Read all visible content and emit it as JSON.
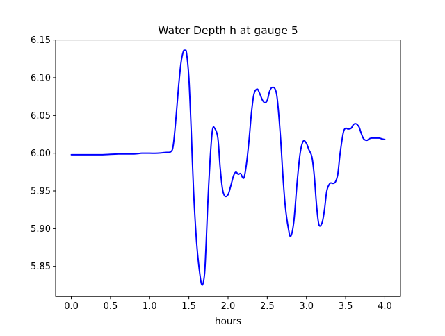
{
  "chart_data": {
    "type": "line",
    "title": "Water Depth h at gauge 5",
    "xlabel": "hours",
    "ylabel": "",
    "xlim": [
      -0.2,
      4.2
    ],
    "ylim": [
      5.81,
      6.15
    ],
    "xticks": [
      0.0,
      0.5,
      1.0,
      1.5,
      2.0,
      2.5,
      3.0,
      3.5,
      4.0
    ],
    "xtick_labels": [
      "0.0",
      "0.5",
      "1.0",
      "1.5",
      "2.0",
      "2.5",
      "3.0",
      "3.5",
      "4.0"
    ],
    "yticks": [
      5.85,
      5.9,
      5.95,
      6.0,
      6.05,
      6.1,
      6.15
    ],
    "ytick_labels": [
      "5.85",
      "5.90",
      "5.95",
      "6.00",
      "6.05",
      "6.10",
      "6.15"
    ],
    "grid": false,
    "legend": "none",
    "series": [
      {
        "color": "#0000ff",
        "x": [
          0.0,
          0.2,
          0.4,
          0.6,
          0.8,
          0.9,
          1.0,
          1.1,
          1.2,
          1.27,
          1.3,
          1.33,
          1.37,
          1.4,
          1.43,
          1.45,
          1.47,
          1.5,
          1.53,
          1.56,
          1.6,
          1.64,
          1.67,
          1.7,
          1.72,
          1.74,
          1.77,
          1.8,
          1.83,
          1.87,
          1.9,
          1.93,
          1.96,
          2.0,
          2.03,
          2.07,
          2.1,
          2.13,
          2.16,
          2.19,
          2.21,
          2.24,
          2.27,
          2.3,
          2.33,
          2.37,
          2.4,
          2.44,
          2.47,
          2.5,
          2.53,
          2.56,
          2.6,
          2.63,
          2.67,
          2.7,
          2.73,
          2.77,
          2.8,
          2.84,
          2.88,
          2.92,
          2.96,
          3.0,
          3.03,
          3.07,
          3.1,
          3.13,
          3.16,
          3.2,
          3.23,
          3.26,
          3.3,
          3.34,
          3.37,
          3.4,
          3.43,
          3.47,
          3.5,
          3.53,
          3.57,
          3.6,
          3.63,
          3.67,
          3.7,
          3.73,
          3.77,
          3.8,
          3.83,
          3.86,
          3.9,
          3.93,
          3.96,
          4.0
        ],
        "y": [
          5.998,
          5.998,
          5.998,
          5.999,
          5.999,
          6.0,
          6.0,
          6.0,
          6.001,
          6.002,
          6.01,
          6.04,
          6.09,
          6.12,
          6.135,
          6.136,
          6.133,
          6.1,
          6.03,
          5.95,
          5.88,
          5.84,
          5.825,
          5.84,
          5.88,
          5.93,
          5.99,
          6.03,
          6.033,
          6.02,
          5.98,
          5.952,
          5.943,
          5.945,
          5.955,
          5.97,
          5.975,
          5.972,
          5.973,
          5.967,
          5.97,
          5.99,
          6.02,
          6.055,
          6.078,
          6.085,
          6.08,
          6.07,
          6.067,
          6.07,
          6.082,
          6.087,
          6.085,
          6.07,
          6.02,
          5.97,
          5.93,
          5.9,
          5.89,
          5.91,
          5.96,
          6.0,
          6.016,
          6.013,
          6.005,
          5.995,
          5.97,
          5.93,
          5.905,
          5.908,
          5.925,
          5.95,
          5.96,
          5.96,
          5.962,
          5.972,
          6.0,
          6.027,
          6.033,
          6.032,
          6.033,
          6.038,
          6.039,
          6.035,
          6.026,
          6.019,
          6.017,
          6.019,
          6.02,
          6.02,
          6.02,
          6.02,
          6.019,
          6.018
        ]
      }
    ]
  }
}
